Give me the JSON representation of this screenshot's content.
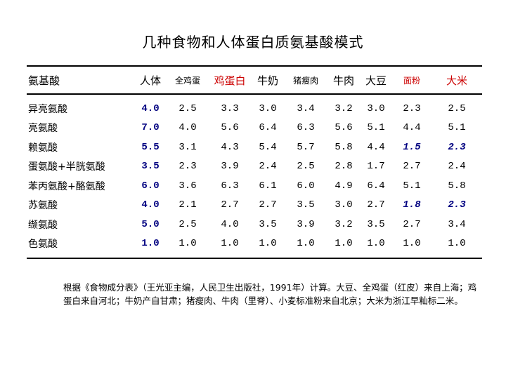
{
  "title": "几种食物和人体蛋白质氨基酸模式",
  "table": {
    "headers": [
      "氨基酸",
      "人体",
      "全鸡蛋",
      "鸡蛋白",
      "牛奶",
      "猪瘦肉",
      "牛肉",
      "大豆",
      "面粉",
      "大米"
    ],
    "rows": [
      {
        "name": "异亮氨酸",
        "values": [
          "4.0",
          "2.5",
          "3.3",
          "3.0",
          "3.4",
          "3.2",
          "3.0",
          "2.3",
          "2.5"
        ]
      },
      {
        "name": "亮氨酸",
        "values": [
          "7.0",
          "4.0",
          "5.6",
          "6.4",
          "6.3",
          "5.6",
          "5.1",
          "4.4",
          "5.1"
        ]
      },
      {
        "name": "赖氨酸",
        "values": [
          "5.5",
          "3.1",
          "4.3",
          "5.4",
          "5.7",
          "5.8",
          "4.4",
          "1.5",
          "2.3"
        ]
      },
      {
        "name": "蛋氨酸+半胱氨酸",
        "values": [
          "3.5",
          "2.3",
          "3.9",
          "2.4",
          "2.5",
          "2.8",
          "1.7",
          "2.7",
          "2.4"
        ]
      },
      {
        "name": "苯丙氨酸+酪氨酸",
        "values": [
          "6.0",
          "3.6",
          "6.3",
          "6.1",
          "6.0",
          "4.9",
          "6.4",
          "5.1",
          "5.8"
        ]
      },
      {
        "name": "苏氨酸",
        "values": [
          "4.0",
          "2.1",
          "2.7",
          "2.7",
          "3.5",
          "3.0",
          "2.7",
          "1.8",
          "2.3"
        ]
      },
      {
        "name": "缬氨酸",
        "values": [
          "5.0",
          "2.5",
          "4.0",
          "3.5",
          "3.9",
          "3.2",
          "3.5",
          "2.7",
          "3.4"
        ]
      },
      {
        "name": "色氨酸",
        "values": [
          "1.0",
          "1.0",
          "1.0",
          "1.0",
          "1.0",
          "1.0",
          "1.0",
          "1.0",
          "1.0"
        ]
      }
    ]
  },
  "note": "根据《食物成分表》（王光亚主编，人民卫生出版社，1991年）计算。大豆、全鸡蛋（红皮）来自上海；鸡蛋白来自河北；牛奶产自甘肃；猪瘦肉、牛肉（里脊）、小麦标准粉来自北京；大米为浙江早籼标二米。",
  "colors": {
    "human_column": "#000080",
    "highlight_header": "#cc0000"
  }
}
